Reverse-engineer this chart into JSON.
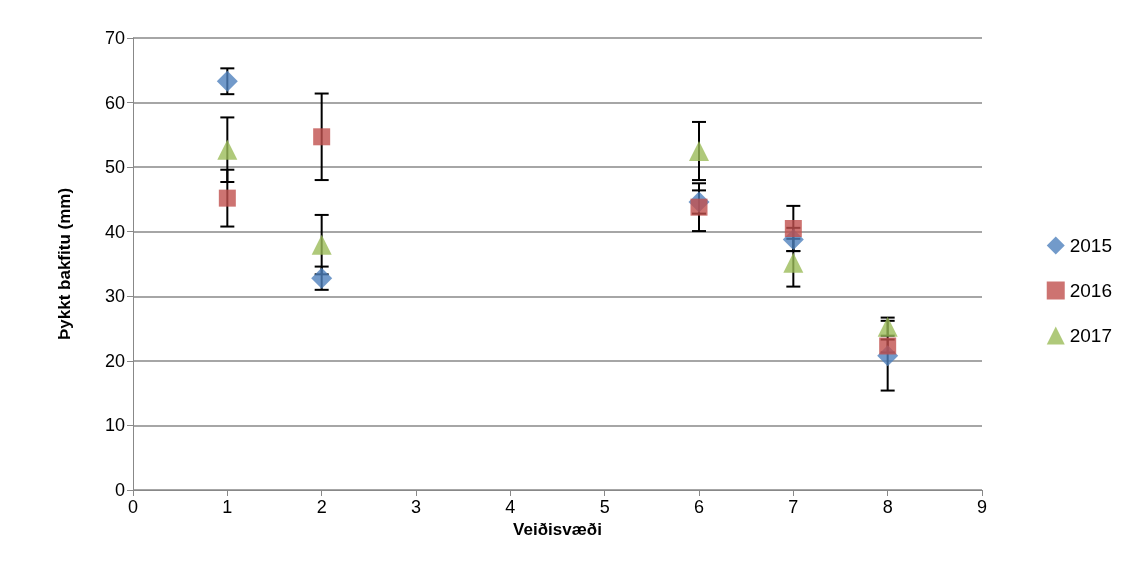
{
  "chart_data": {
    "type": "scatter",
    "xlabel": "Veiðisvæði",
    "ylabel": "Þykkt bakfitu (mm)",
    "xlim": [
      0,
      9
    ],
    "xticks": [
      0,
      1,
      2,
      3,
      4,
      5,
      6,
      7,
      8,
      9
    ],
    "ylim": [
      0,
      70
    ],
    "yticks": [
      0,
      10,
      20,
      30,
      40,
      50,
      60,
      70
    ],
    "grid": "y",
    "legend": "right",
    "x": [
      1,
      2,
      6,
      7,
      8
    ],
    "series": [
      {
        "name": "2015",
        "color": "#4f81bd",
        "marker": "diamond",
        "values": [
          63.3,
          32.8,
          44.6,
          38.8,
          20.8
        ],
        "errors": [
          2,
          1.8,
          1.8,
          1.8,
          5.4
        ]
      },
      {
        "name": "2016",
        "color": "#c0504d",
        "marker": "square",
        "values": [
          45.2,
          54.7,
          43.8,
          40.5,
          22.3
        ],
        "errors": [
          4.4,
          6.7,
          3.7,
          3.5,
          1
        ]
      },
      {
        "name": "2017",
        "color": "#9bbb59",
        "marker": "triangle",
        "values": [
          52.7,
          38,
          52.5,
          35.2,
          25.3
        ],
        "errors": [
          5,
          4.6,
          4.5,
          3.7,
          1.4
        ]
      }
    ]
  }
}
